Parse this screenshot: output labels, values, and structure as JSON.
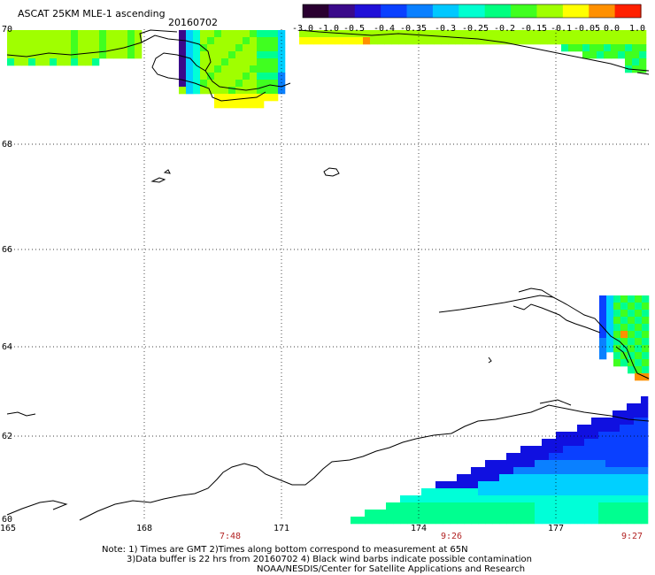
{
  "title": "ASCAT 25KM MLE-1 ascending",
  "date": "20160702",
  "colorbar": {
    "labels": [
      "-3.0",
      "-1.0",
      "-0.5",
      "-0.4",
      "-0.35",
      "-0.3",
      "-0.25",
      "-0.2",
      "-0.15",
      "-0.1",
      "-0.05",
      "0.0",
      "1.0"
    ],
    "colors": [
      "#2a0030",
      "#3a0a8a",
      "#2010d8",
      "#0a40ff",
      "#0a80ff",
      "#00c8ff",
      "#00ffd0",
      "#00ff80",
      "#40ff20",
      "#a0ff00",
      "#ffff00",
      "#ff9000",
      "#ff2000"
    ]
  },
  "lat_labels": [
    "70",
    "68",
    "66",
    "64",
    "62",
    "60"
  ],
  "lon_labels": [
    "165",
    "168",
    "171",
    "174",
    "177"
  ],
  "time_labels": [
    "7:48",
    "9:26",
    "9:27"
  ],
  "notes": [
    "Note: 1) Times are GMT 2)Times along bottom correspond to measurement at 65N",
    "3)Data buffer is 22 hrs from 20160702 4) Black wind barbs indicate possible contamination",
    "NOAA/NESDIS/Center for Satellite Applications and Research"
  ]
}
